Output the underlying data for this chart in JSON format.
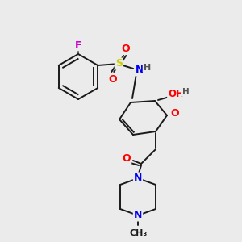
{
  "bg_color": "#ebebeb",
  "bond_color": "#1a1a1a",
  "atom_colors": {
    "F": "#cc00cc",
    "O": "#ff0000",
    "N": "#0000ee",
    "S": "#cccc00",
    "H": "#555555",
    "C": "#1a1a1a"
  },
  "figsize": [
    3.0,
    3.0
  ],
  "dpi": 100
}
